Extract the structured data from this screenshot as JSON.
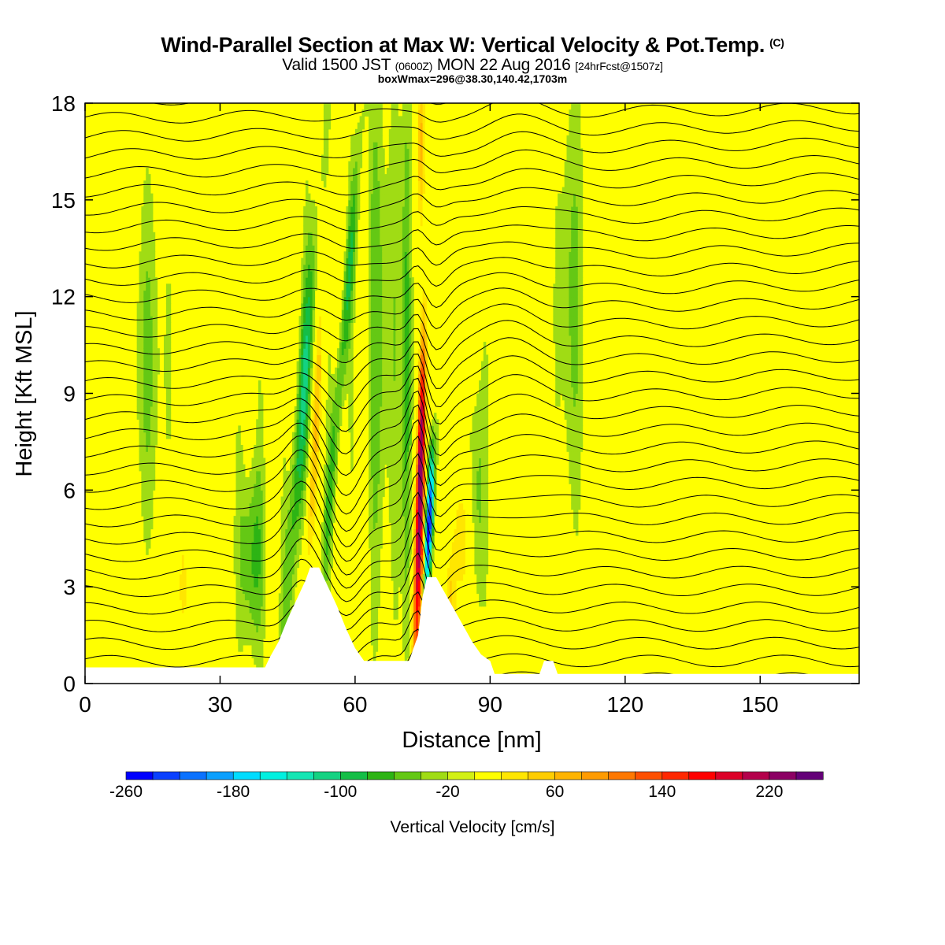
{
  "title": {
    "main": "Wind-Parallel Section at Max W: Vertical Velocity & Pot.Temp.",
    "mark": "(C)",
    "valid": "Valid 1500 JST",
    "zulu": "(0600Z)",
    "date": "MON 22 Aug 2016",
    "fcst": "[24hrFcst@1507z]",
    "boxinfo": "boxWmax=296@38.30,140.42,1703m"
  },
  "chart_data": {
    "type": "heatmap",
    "xlabel": "Distance [nm]",
    "ylabel": "Height [Kft MSL]",
    "xlim": [
      0,
      172
    ],
    "ylim": [
      0,
      18
    ],
    "xticks": [
      0,
      30,
      60,
      90,
      120,
      150
    ],
    "yticks": [
      0,
      3,
      6,
      9,
      12,
      15,
      18
    ],
    "colorbar": {
      "label": "Vertical Velocity [cm/s]",
      "levels": [
        -260,
        -240,
        -220,
        -200,
        -180,
        -160,
        -140,
        -120,
        -100,
        -80,
        -60,
        -40,
        -20,
        20,
        40,
        60,
        80,
        100,
        120,
        140,
        160,
        180,
        200,
        220,
        240,
        260
      ],
      "tick_labels": [
        -260,
        -180,
        -100,
        -20,
        60,
        140,
        220
      ],
      "colors": [
        "#0000ff",
        "#0a40ff",
        "#0a72ff",
        "#0aa0ff",
        "#00dcff",
        "#00f0e0",
        "#14e6b4",
        "#14d282",
        "#14be46",
        "#2db414",
        "#64c814",
        "#a0dc14",
        "#d2f014",
        "#ffff00",
        "#ffe600",
        "#ffcd00",
        "#ffb400",
        "#ff9b00",
        "#ff7800",
        "#ff5000",
        "#ff2800",
        "#ff0000",
        "#dc0028",
        "#b4004b",
        "#8c0064",
        "#640078"
      ]
    },
    "terrain_kft": [
      [
        0,
        0.5
      ],
      [
        40,
        0.5
      ],
      [
        41,
        0.8
      ],
      [
        43,
        1.3
      ],
      [
        45,
        2.0
      ],
      [
        47,
        2.6
      ],
      [
        49,
        3.2
      ],
      [
        50,
        3.6
      ],
      [
        52,
        3.6
      ],
      [
        54,
        3.0
      ],
      [
        56,
        2.4
      ],
      [
        58,
        1.7
      ],
      [
        60,
        1.1
      ],
      [
        62,
        0.7
      ],
      [
        72,
        0.7
      ],
      [
        74,
        1.5
      ],
      [
        75,
        2.7
      ],
      [
        76,
        3.3
      ],
      [
        78,
        3.3
      ],
      [
        80,
        2.8
      ],
      [
        82,
        2.3
      ],
      [
        84,
        1.8
      ],
      [
        86,
        1.3
      ],
      [
        88,
        0.9
      ],
      [
        90,
        0.7
      ],
      [
        91,
        0.3
      ],
      [
        92,
        0.3
      ],
      [
        101,
        0.3
      ],
      [
        102,
        0.7
      ],
      [
        104,
        0.7
      ],
      [
        105,
        0.3
      ],
      [
        172,
        0.3
      ]
    ],
    "updraft_axis_x_nm": 74.5,
    "downdraft_axis_x_nm": 76.5,
    "w_max_cm_s": 296
  }
}
